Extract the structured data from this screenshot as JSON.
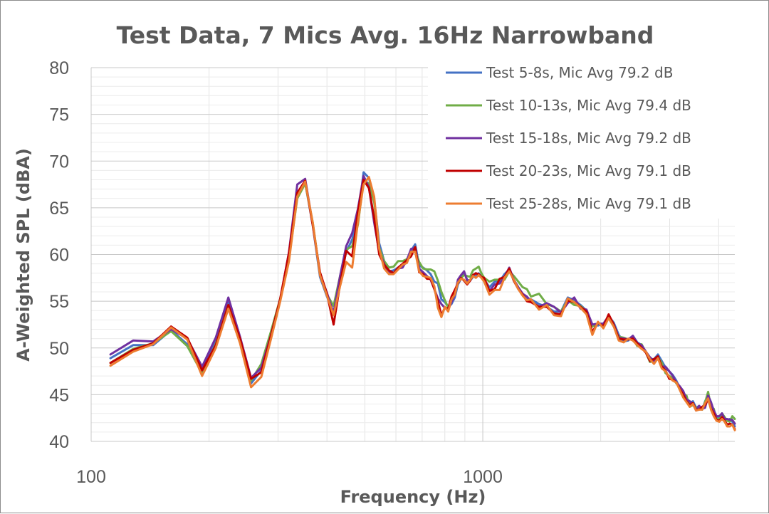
{
  "chart_data": {
    "type": "line",
    "title": "Test Data, 7 Mics Avg. 16Hz Narrowband",
    "xlabel": "Frequency (Hz)",
    "ylabel": "A-Weighted SPL (dBA)",
    "xscale": "log",
    "xlim": [
      100,
      4400
    ],
    "ylim": [
      40,
      80
    ],
    "y_ticks": [
      40,
      45,
      50,
      55,
      60,
      65,
      70,
      75,
      80
    ],
    "x_ticks": [
      100,
      1000
    ],
    "x_tick_labels": [
      "100",
      "1000"
    ],
    "grid": true,
    "legend_position": "top-right",
    "series": [
      {
        "name": "Test 5-8s, Mic Avg 79.2 dB",
        "color": "#4472C4",
        "x": [
          112,
          128,
          144,
          160,
          176,
          192,
          208,
          224,
          240,
          256,
          272,
          288,
          304,
          320,
          336,
          352,
          368,
          384,
          400,
          416,
          432,
          448,
          464,
          480,
          496,
          512,
          528,
          544,
          560,
          576,
          592,
          608,
          624,
          640,
          656,
          672,
          688,
          704,
          720,
          736,
          752,
          768,
          784,
          800,
          816,
          832,
          848,
          864,
          880,
          896,
          912,
          928,
          944,
          960,
          976,
          992,
          1008,
          1040,
          1072,
          1104,
          1136,
          1168,
          1200,
          1232,
          1264,
          1296,
          1328,
          1392,
          1456,
          1520,
          1584,
          1648,
          1712,
          1776,
          1840,
          1904,
          1968,
          2032,
          2096,
          2160,
          2224,
          2288,
          2352,
          2416,
          2480,
          2544,
          2608,
          2672,
          2736,
          2800,
          2864,
          2928,
          2992,
          3056,
          3120,
          3184,
          3248,
          3312,
          3376,
          3440,
          3504,
          3568,
          3632,
          3696,
          3760,
          3824,
          3888,
          3952,
          4016,
          4080,
          4144,
          4208,
          4272,
          4336,
          4400
        ],
        "values": [
          48.9,
          50.3,
          50.3,
          51.9,
          50.4,
          47.6,
          50.8,
          54.9,
          50.8,
          46.2,
          47.6,
          51.3,
          55.1,
          60.0,
          66.6,
          67.7,
          63.1,
          57.6,
          55.5,
          53.8,
          57.4,
          60.3,
          61.6,
          63.9,
          68.8,
          68.2,
          65.9,
          61.2,
          59.3,
          58.2,
          58.3,
          58.6,
          58.9,
          59.1,
          60.4,
          61.1,
          58.8,
          58.6,
          58.3,
          57.9,
          57.1,
          56.9,
          55.2,
          54.9,
          54.4,
          54.7,
          55.4,
          56.8,
          57.4,
          58.1,
          57.3,
          57.2,
          57.6,
          57.7,
          58.0,
          57.6,
          57.3,
          56.5,
          57.1,
          57.1,
          57.9,
          58.4,
          57.2,
          56.4,
          55.8,
          55.3,
          55.2,
          54.7,
          54.4,
          53.9,
          53.9,
          55.4,
          55.1,
          54.6,
          54.0,
          52.5,
          52.4,
          52.6,
          53.4,
          52.7,
          51.4,
          50.7,
          50.8,
          51.3,
          50.6,
          50.3,
          49.6,
          48.8,
          48.8,
          49.3,
          48.6,
          47.9,
          47.5,
          47.1,
          46.5,
          45.7,
          45.2,
          44.6,
          44.1,
          44.3,
          43.6,
          43.8,
          43.4,
          44.3,
          44.9,
          44.2,
          43.1,
          42.6,
          42.5,
          42.8,
          42.4,
          42.3,
          42.4,
          42.1,
          41.6
        ]
      },
      {
        "name": "Test 10-13s, Mic Avg 79.4 dB",
        "color": "#70AD47",
        "x": [
          112,
          128,
          144,
          160,
          176,
          192,
          208,
          224,
          240,
          256,
          272,
          288,
          304,
          320,
          336,
          352,
          368,
          384,
          400,
          416,
          432,
          448,
          464,
          480,
          496,
          512,
          528,
          544,
          560,
          576,
          592,
          608,
          624,
          640,
          656,
          672,
          688,
          704,
          720,
          736,
          752,
          768,
          784,
          800,
          816,
          832,
          848,
          864,
          880,
          896,
          912,
          928,
          944,
          960,
          976,
          992,
          1008,
          1040,
          1072,
          1104,
          1136,
          1168,
          1200,
          1232,
          1264,
          1296,
          1328,
          1392,
          1456,
          1520,
          1584,
          1648,
          1712,
          1776,
          1840,
          1904,
          1968,
          2032,
          2096,
          2160,
          2224,
          2288,
          2352,
          2416,
          2480,
          2544,
          2608,
          2672,
          2736,
          2800,
          2864,
          2928,
          2992,
          3056,
          3120,
          3184,
          3248,
          3312,
          3376,
          3440,
          3504,
          3568,
          3632,
          3696,
          3760,
          3824,
          3888,
          3952,
          4016,
          4080,
          4144,
          4208,
          4272,
          4336,
          4400
        ],
        "values": [
          48.4,
          49.9,
          50.5,
          51.8,
          50.2,
          47.3,
          50.4,
          54.6,
          51.0,
          46.5,
          48.3,
          51.8,
          55.3,
          59.6,
          66.0,
          67.6,
          63.4,
          57.9,
          55.7,
          54.5,
          57.7,
          60.5,
          60.9,
          63.2,
          67.9,
          67.6,
          65.6,
          60.7,
          59.3,
          58.6,
          58.7,
          59.3,
          59.3,
          59.5,
          60.2,
          60.4,
          59.2,
          58.5,
          58.4,
          58.4,
          58.2,
          57.2,
          56.0,
          55.1,
          54.3,
          55.0,
          56.0,
          57.0,
          57.5,
          57.8,
          57.7,
          57.6,
          58.3,
          58.5,
          58.7,
          58.0,
          57.5,
          57.1,
          57.3,
          57.3,
          57.3,
          58.2,
          57.7,
          57.1,
          56.5,
          56.3,
          55.5,
          55.8,
          54.7,
          54.4,
          53.9,
          55.1,
          54.6,
          54.5,
          53.9,
          52.3,
          52.6,
          52.5,
          53.2,
          52.3,
          51.2,
          51.1,
          50.9,
          51.0,
          50.2,
          50.4,
          49.5,
          48.5,
          48.6,
          49.0,
          48.4,
          47.3,
          47.0,
          46.8,
          46.2,
          45.8,
          45.1,
          44.9,
          43.7,
          43.9,
          43.6,
          43.6,
          43.4,
          44.2,
          45.3,
          43.7,
          43.5,
          42.4,
          42.4,
          43.0,
          42.6,
          42.2,
          42.1,
          42.7,
          42.4
        ]
      },
      {
        "name": "Test 15-18s, Mic Avg 79.2 dB",
        "color": "#7030A0",
        "x": [
          112,
          128,
          144,
          160,
          176,
          192,
          208,
          224,
          240,
          256,
          272,
          288,
          304,
          320,
          336,
          352,
          368,
          384,
          400,
          416,
          432,
          448,
          464,
          480,
          496,
          512,
          528,
          544,
          560,
          576,
          592,
          608,
          624,
          640,
          656,
          672,
          688,
          704,
          720,
          736,
          752,
          768,
          784,
          800,
          816,
          832,
          848,
          864,
          880,
          896,
          912,
          928,
          944,
          960,
          976,
          992,
          1008,
          1040,
          1072,
          1104,
          1136,
          1168,
          1200,
          1232,
          1264,
          1296,
          1328,
          1392,
          1456,
          1520,
          1584,
          1648,
          1712,
          1776,
          1840,
          1904,
          1968,
          2032,
          2096,
          2160,
          2224,
          2288,
          2352,
          2416,
          2480,
          2544,
          2608,
          2672,
          2736,
          2800,
          2864,
          2928,
          2992,
          3056,
          3120,
          3184,
          3248,
          3312,
          3376,
          3440,
          3504,
          3568,
          3632,
          3696,
          3760,
          3824,
          3888,
          3952,
          4016,
          4080,
          4144,
          4208,
          4272,
          4336,
          4400
        ],
        "values": [
          49.3,
          50.8,
          50.7,
          52.0,
          51.0,
          48.0,
          51.1,
          55.4,
          51.2,
          46.8,
          47.9,
          51.4,
          55.2,
          60.3,
          67.5,
          68.1,
          63.2,
          57.9,
          55.9,
          53.7,
          57.7,
          60.9,
          62.3,
          64.9,
          68.4,
          67.2,
          63.4,
          60.3,
          59.0,
          58.0,
          58.0,
          58.5,
          58.6,
          59.4,
          60.6,
          60.7,
          58.5,
          58.1,
          57.7,
          57.3,
          56.3,
          55.3,
          54.7,
          54.3,
          54.1,
          54.9,
          55.7,
          57.3,
          57.8,
          58.2,
          57.2,
          57.2,
          57.8,
          58.0,
          57.8,
          57.6,
          57.4,
          56.1,
          56.8,
          56.9,
          57.6,
          58.6,
          57.3,
          56.5,
          55.8,
          55.5,
          55.0,
          54.4,
          54.8,
          54.4,
          53.8,
          54.8,
          55.4,
          54.2,
          54.1,
          52.5,
          52.6,
          52.6,
          53.4,
          52.5,
          51.1,
          51.0,
          50.9,
          51.3,
          50.5,
          50.3,
          49.6,
          49.0,
          48.6,
          48.9,
          48.0,
          48.0,
          47.5,
          47.0,
          46.3,
          45.9,
          45.4,
          44.5,
          44.3,
          44.0,
          43.3,
          43.8,
          43.5,
          43.6,
          44.9,
          44.2,
          43.3,
          42.7,
          42.7,
          43.0,
          42.4,
          42.4,
          42.3,
          42.3,
          41.9
        ]
      },
      {
        "name": "Test 20-23s, Mic Avg 79.1 dB",
        "color": "#C00000",
        "x": [
          112,
          128,
          144,
          160,
          176,
          192,
          208,
          224,
          240,
          256,
          272,
          288,
          304,
          320,
          336,
          352,
          368,
          384,
          400,
          416,
          432,
          448,
          464,
          480,
          496,
          512,
          528,
          544,
          560,
          576,
          592,
          608,
          624,
          640,
          656,
          672,
          688,
          704,
          720,
          736,
          752,
          768,
          784,
          800,
          816,
          832,
          848,
          864,
          880,
          896,
          912,
          928,
          944,
          960,
          976,
          992,
          1008,
          1040,
          1072,
          1104,
          1136,
          1168,
          1200,
          1232,
          1264,
          1296,
          1328,
          1392,
          1456,
          1520,
          1584,
          1648,
          1712,
          1776,
          1840,
          1904,
          1968,
          2032,
          2096,
          2160,
          2224,
          2288,
          2352,
          2416,
          2480,
          2544,
          2608,
          2672,
          2736,
          2800,
          2864,
          2928,
          2992,
          3056,
          3120,
          3184,
          3248,
          3312,
          3376,
          3440,
          3504,
          3568,
          3632,
          3696,
          3760,
          3824,
          3888,
          3952,
          4016,
          4080,
          4144,
          4208,
          4272,
          4336,
          4400
        ],
        "values": [
          48.4,
          49.8,
          50.5,
          52.3,
          51.1,
          47.6,
          50.3,
          54.6,
          51.0,
          46.7,
          47.4,
          51.4,
          55.3,
          60.2,
          66.6,
          67.9,
          63.1,
          58.1,
          55.8,
          52.5,
          56.8,
          60.4,
          59.8,
          64.6,
          68.0,
          67.1,
          63.9,
          60.0,
          58.9,
          58.3,
          58.0,
          58.6,
          59.0,
          59.4,
          59.8,
          60.8,
          58.1,
          57.9,
          57.4,
          57.4,
          56.3,
          55.0,
          53.5,
          54.3,
          54.2,
          55.5,
          56.2,
          56.9,
          57.5,
          57.2,
          56.8,
          57.2,
          57.8,
          58.0,
          57.9,
          57.6,
          57.5,
          56.1,
          56.3,
          57.4,
          57.6,
          58.5,
          57.2,
          56.3,
          55.7,
          55.0,
          54.9,
          54.4,
          54.4,
          53.7,
          53.6,
          55.1,
          54.9,
          54.4,
          53.9,
          51.7,
          52.7,
          52.3,
          53.6,
          52.5,
          51.0,
          50.9,
          50.9,
          51.0,
          50.5,
          50.0,
          49.5,
          48.6,
          48.8,
          49.1,
          48.0,
          47.6,
          46.7,
          46.6,
          46.3,
          45.6,
          45.0,
          44.3,
          43.9,
          44.1,
          43.4,
          43.4,
          43.7,
          43.9,
          44.5,
          43.5,
          43.0,
          42.3,
          42.2,
          42.6,
          42.2,
          41.8,
          41.9,
          41.8,
          41.3
        ]
      },
      {
        "name": "Test 25-28s, Mic Avg 79.1 dB",
        "color": "#ED7D31",
        "x": [
          112,
          128,
          144,
          160,
          176,
          192,
          208,
          224,
          240,
          256,
          272,
          288,
          304,
          320,
          336,
          352,
          368,
          384,
          400,
          416,
          432,
          448,
          464,
          480,
          496,
          512,
          528,
          544,
          560,
          576,
          592,
          608,
          624,
          640,
          656,
          672,
          688,
          704,
          720,
          736,
          752,
          768,
          784,
          800,
          816,
          832,
          848,
          864,
          880,
          896,
          912,
          928,
          944,
          960,
          976,
          992,
          1008,
          1040,
          1072,
          1104,
          1136,
          1168,
          1200,
          1232,
          1264,
          1296,
          1328,
          1392,
          1456,
          1520,
          1584,
          1648,
          1712,
          1776,
          1840,
          1904,
          1968,
          2032,
          2096,
          2160,
          2224,
          2288,
          2352,
          2416,
          2480,
          2544,
          2608,
          2672,
          2736,
          2800,
          2864,
          2928,
          2992,
          3056,
          3120,
          3184,
          3248,
          3312,
          3376,
          3440,
          3504,
          3568,
          3632,
          3696,
          3760,
          3824,
          3888,
          3952,
          4016,
          4080,
          4144,
          4208,
          4272,
          4336,
          4400
        ],
        "values": [
          48.1,
          49.6,
          50.4,
          52.2,
          50.9,
          47.0,
          50.0,
          54.2,
          50.5,
          45.8,
          46.9,
          51.0,
          55.0,
          59.3,
          66.2,
          67.8,
          63.4,
          57.8,
          55.6,
          53.5,
          56.6,
          59.2,
          58.6,
          63.5,
          67.5,
          68.3,
          66.2,
          60.6,
          58.5,
          57.9,
          57.9,
          58.4,
          58.9,
          59.1,
          60.3,
          60.3,
          58.2,
          57.7,
          57.6,
          57.5,
          56.6,
          54.3,
          53.3,
          54.4,
          53.9,
          55.2,
          55.7,
          57.0,
          57.4,
          57.3,
          56.9,
          57.3,
          57.7,
          57.5,
          57.8,
          57.5,
          57.1,
          55.7,
          56.2,
          56.2,
          57.5,
          58.2,
          57.3,
          56.3,
          55.6,
          55.1,
          55.2,
          54.1,
          54.6,
          53.5,
          53.4,
          55.3,
          54.9,
          54.3,
          53.6,
          51.4,
          52.8,
          52.1,
          53.2,
          52.3,
          50.8,
          50.6,
          51.0,
          50.8,
          50.3,
          49.9,
          49.6,
          48.8,
          48.3,
          48.9,
          47.8,
          47.5,
          46.9,
          46.5,
          46.3,
          45.5,
          44.7,
          44.2,
          43.7,
          44.0,
          43.3,
          43.4,
          43.4,
          44.1,
          44.6,
          43.4,
          42.7,
          42.2,
          42.1,
          42.4,
          42.1,
          41.6,
          41.6,
          41.8,
          41.2
        ]
      }
    ]
  }
}
